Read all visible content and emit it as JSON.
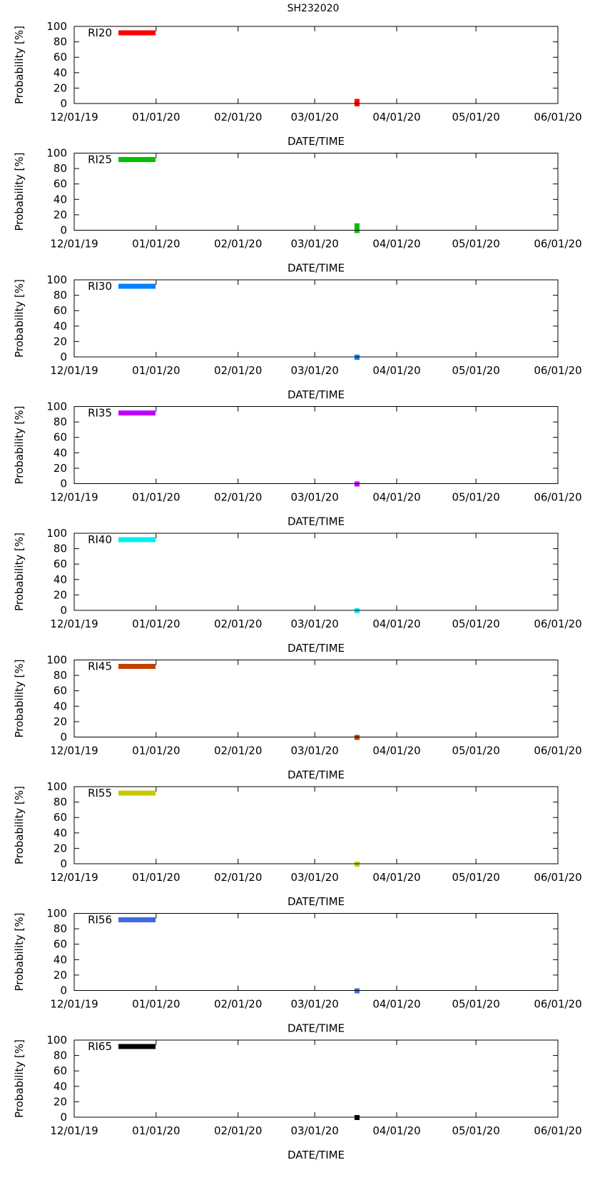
{
  "page_title": "SH232020",
  "chart_data": {
    "type": "bar",
    "title": "SH232020",
    "xlabel": "DATE/TIME",
    "ylabel": "Probability [%]",
    "ylim": [
      0,
      100
    ],
    "yticks": [
      0,
      20,
      40,
      60,
      80,
      100
    ],
    "xlim": [
      "12/01/19",
      "06/01/20"
    ],
    "xticks": [
      "12/01/19",
      "01/01/20",
      "02/01/20",
      "03/01/20",
      "04/01/20",
      "05/01/20",
      "06/01/20"
    ],
    "grid": false,
    "legend_placement": "top-left",
    "panels": [
      {
        "name": "RI20",
        "color": "#ff0000",
        "x": [
          "03/17/20"
        ],
        "values": [
          6
        ]
      },
      {
        "name": "RI25",
        "color": "#00c000",
        "x": [
          "03/17/20"
        ],
        "values": [
          9
        ]
      },
      {
        "name": "RI30",
        "color": "#0080ff",
        "x": [
          "03/17/20"
        ],
        "values": [
          3
        ]
      },
      {
        "name": "RI35",
        "color": "#c000ff",
        "x": [
          "03/17/20"
        ],
        "values": [
          2
        ]
      },
      {
        "name": "RI40",
        "color": "#00eeee",
        "x": [
          "03/17/20"
        ],
        "values": [
          1
        ]
      },
      {
        "name": "RI45",
        "color": "#c04000",
        "x": [
          "03/17/20"
        ],
        "values": [
          1
        ]
      },
      {
        "name": "RI55",
        "color": "#c8c800",
        "x": [
          "03/17/20"
        ],
        "values": [
          1
        ]
      },
      {
        "name": "RI56",
        "color": "#4169e1",
        "x": [
          "03/17/20"
        ],
        "values": [
          0.5
        ]
      },
      {
        "name": "RI65",
        "color": "#000000",
        "x": [
          "03/17/20"
        ],
        "values": [
          0.5
        ]
      }
    ]
  }
}
